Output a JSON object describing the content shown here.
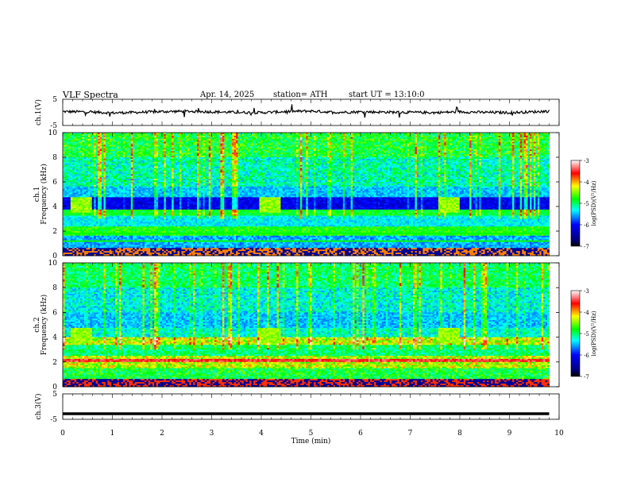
{
  "header": {
    "title": "VLF  Spectra",
    "date": "Apr. 14, 2025",
    "station": "station= ATH",
    "start": "start  UT  =    13:10:0"
  },
  "chart_data": [
    {
      "type": "line",
      "panel": "ch1-waveform",
      "ylabel": "ch.1(V)",
      "yticks": [
        "5",
        "-5"
      ],
      "ylim": [
        -5,
        5
      ],
      "xlim": [
        0,
        10
      ],
      "series_note": "noisy waveform near zero",
      "x": [
        0,
        0.5,
        1,
        1.5,
        2,
        2.5,
        3,
        3.5,
        4,
        4.5,
        5,
        5.5,
        6,
        6.5,
        7,
        7.5,
        8,
        8.5,
        9,
        9.5,
        9.8
      ],
      "y": [
        0.3,
        0.2,
        -0.2,
        0.0,
        0.3,
        0.4,
        0.2,
        0.0,
        -0.1,
        0.3,
        0.5,
        0.0,
        0.2,
        0.1,
        0.0,
        -0.1,
        0.2,
        0.0,
        -0.1,
        0.2,
        0.5
      ]
    },
    {
      "type": "heatmap",
      "panel": "ch1-spectrogram",
      "ylabel": "ch.1\nFrequency (kHz)",
      "yticks": [
        "0",
        "2",
        "4",
        "6",
        "8",
        "10"
      ],
      "ylim": [
        0,
        10
      ],
      "xlim": [
        0,
        10
      ],
      "bursts_min": [
        0.2,
        4.0,
        7.6
      ],
      "colorbar": {
        "label": "log(PSD)(V²/Hz)",
        "ticks": [
          "-3",
          "-4",
          "-5",
          "-6",
          "-7"
        ],
        "range": [
          -7,
          -3
        ]
      }
    },
    {
      "type": "heatmap",
      "panel": "ch2-spectrogram",
      "ylabel": "ch.2\nFrequency (kHz)",
      "yticks": [
        "0",
        "2",
        "4",
        "6",
        "8",
        "10"
      ],
      "ylim": [
        0,
        10
      ],
      "xlim": [
        0,
        10
      ],
      "bursts_min": [
        0.2,
        4.0,
        7.6
      ],
      "colorbar": {
        "label": "log(PSD)(V²/Hz)",
        "ticks": [
          "-3",
          "-4",
          "-5",
          "-6",
          "-7"
        ],
        "range": [
          -7,
          -3
        ]
      }
    },
    {
      "type": "line",
      "panel": "ch3-waveform",
      "ylabel": "ch.3(V)",
      "yticks": [
        "5",
        "-5"
      ],
      "ylim": [
        -5,
        5
      ],
      "xlim": [
        0,
        10
      ],
      "x": [
        0,
        9.8
      ],
      "y": [
        -2.8,
        -2.8
      ]
    }
  ],
  "xaxis": {
    "label": "Time  (min)",
    "ticks": [
      "0",
      "1",
      "2",
      "3",
      "4",
      "5",
      "6",
      "7",
      "8",
      "9",
      "10"
    ]
  },
  "colors": {
    "jet": [
      "#000080",
      "#0000ff",
      "#00ffff",
      "#00ff00",
      "#ffff00",
      "#ff0000",
      "#ffffff"
    ]
  }
}
